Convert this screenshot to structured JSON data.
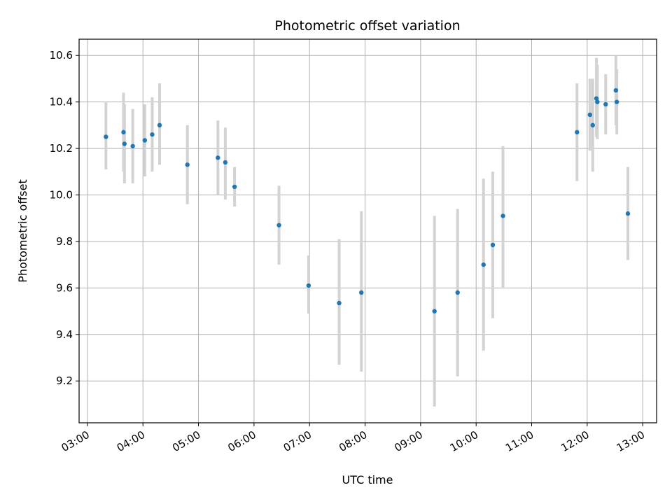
{
  "chart_data": {
    "type": "scatter",
    "title": "Photometric offset variation",
    "xlabel": "UTC time",
    "ylabel": "Photometric offset",
    "x_tick_labels": [
      "03:00",
      "04:00",
      "05:00",
      "06:00",
      "07:00",
      "08:00",
      "09:00",
      "10:00",
      "11:00",
      "12:00",
      "13:00"
    ],
    "y_tick_labels": [
      "9.2",
      "9.4",
      "9.6",
      "9.8",
      "10.0",
      "10.2",
      "10.4",
      "10.6"
    ],
    "y_ticks": [
      9.2,
      9.4,
      9.6,
      9.8,
      10.0,
      10.2,
      10.4,
      10.6
    ],
    "xlim": [
      "02:51",
      "13:15"
    ],
    "ylim": [
      9.02,
      10.67
    ],
    "grid": true,
    "point_color": "#1f77b4",
    "errorbar_color": "#d3d3d3",
    "points": [
      {
        "x": "03:20",
        "y": 10.25,
        "low": 10.11,
        "high": 10.4
      },
      {
        "x": "03:39",
        "y": 10.27,
        "low": 10.1,
        "high": 10.44
      },
      {
        "x": "03:40",
        "y": 10.22,
        "low": 10.05,
        "high": 10.39
      },
      {
        "x": "03:49",
        "y": 10.21,
        "low": 10.05,
        "high": 10.37
      },
      {
        "x": "04:02",
        "y": 10.235,
        "low": 10.08,
        "high": 10.39
      },
      {
        "x": "04:10",
        "y": 10.26,
        "low": 10.1,
        "high": 10.42
      },
      {
        "x": "04:18",
        "y": 10.3,
        "low": 10.13,
        "high": 10.48
      },
      {
        "x": "04:48",
        "y": 10.13,
        "low": 9.96,
        "high": 10.3
      },
      {
        "x": "05:21",
        "y": 10.16,
        "low": 10.0,
        "high": 10.32
      },
      {
        "x": "05:29",
        "y": 10.14,
        "low": 9.98,
        "high": 10.29
      },
      {
        "x": "05:39",
        "y": 10.035,
        "low": 9.95,
        "high": 10.12
      },
      {
        "x": "06:27",
        "y": 9.87,
        "low": 9.7,
        "high": 10.04
      },
      {
        "x": "06:59",
        "y": 9.61,
        "low": 9.49,
        "high": 9.74
      },
      {
        "x": "07:32",
        "y": 9.535,
        "low": 9.27,
        "high": 9.81
      },
      {
        "x": "07:56",
        "y": 9.58,
        "low": 9.24,
        "high": 9.93
      },
      {
        "x": "09:15",
        "y": 9.5,
        "low": 9.09,
        "high": 9.91
      },
      {
        "x": "09:40",
        "y": 9.58,
        "low": 9.22,
        "high": 9.94
      },
      {
        "x": "10:08",
        "y": 9.7,
        "low": 9.33,
        "high": 10.07
      },
      {
        "x": "10:18",
        "y": 9.785,
        "low": 9.47,
        "high": 10.1
      },
      {
        "x": "10:29",
        "y": 9.91,
        "low": 9.6,
        "high": 10.21
      },
      {
        "x": "11:49",
        "y": 10.27,
        "low": 10.06,
        "high": 10.48
      },
      {
        "x": "12:03",
        "y": 10.345,
        "low": 10.19,
        "high": 10.5
      },
      {
        "x": "12:06",
        "y": 10.3,
        "low": 10.1,
        "high": 10.5
      },
      {
        "x": "12:10",
        "y": 10.415,
        "low": 10.25,
        "high": 10.59
      },
      {
        "x": "12:11",
        "y": 10.4,
        "low": 10.24,
        "high": 10.56
      },
      {
        "x": "12:20",
        "y": 10.39,
        "low": 10.26,
        "high": 10.52
      },
      {
        "x": "12:31",
        "y": 10.45,
        "low": 10.3,
        "high": 10.6
      },
      {
        "x": "12:32",
        "y": 10.4,
        "low": 10.26,
        "high": 10.54
      },
      {
        "x": "12:44",
        "y": 9.92,
        "low": 9.72,
        "high": 10.12
      }
    ]
  }
}
